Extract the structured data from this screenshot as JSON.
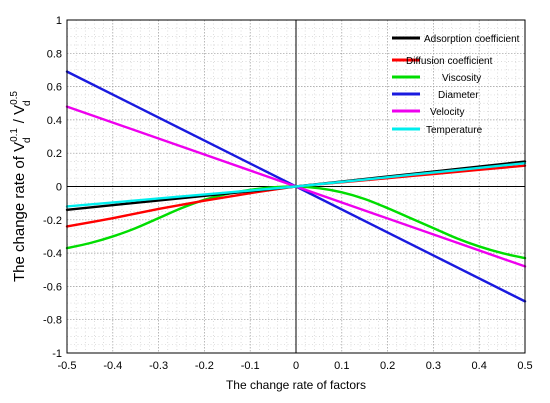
{
  "chart_data": {
    "type": "line",
    "xlabel": "The change rate of factors",
    "ylabel": {
      "prefix": "The change rate of  ",
      "num_base": "V",
      "num_sub": "d",
      "num_sup": "0.1",
      "separator": " / ",
      "den_base": "V",
      "den_sub": "d",
      "den_sup": "0.5"
    },
    "xlim": [
      -0.5,
      0.5
    ],
    "ylim": [
      -1,
      1
    ],
    "x_ticks": [
      "-0.5",
      "-0.4",
      "-0.3",
      "-0.2",
      "-0.1",
      "0",
      "0.1",
      "0.2",
      "0.3",
      "0.4",
      "0.5"
    ],
    "y_ticks": [
      "-1",
      "-0.8",
      "-0.6",
      "-0.4",
      "-0.2",
      "0",
      "0.2",
      "0.4",
      "0.6",
      "0.8",
      "1"
    ],
    "grid": true,
    "legend_position": "top-right",
    "series": [
      {
        "name": "Adsorption coefficient",
        "color": "#000000",
        "x": [
          -0.5,
          -0.25,
          0,
          0.25,
          0.5
        ],
        "y": [
          -0.14,
          -0.07,
          0,
          0.075,
          0.15
        ]
      },
      {
        "name": "Diffusion coefficient",
        "color": "#ff0000",
        "x": [
          -0.5,
          -0.4,
          -0.3,
          -0.2,
          -0.1,
          0,
          0.1,
          0.2,
          0.3,
          0.4,
          0.5
        ],
        "y": [
          -0.24,
          -0.19,
          -0.135,
          -0.085,
          -0.04,
          0,
          0.025,
          0.05,
          0.075,
          0.1,
          0.125
        ]
      },
      {
        "name": "Viscosity",
        "color": "#00dd00",
        "x": [
          -0.5,
          -0.45,
          -0.4,
          -0.35,
          -0.3,
          -0.25,
          -0.2,
          -0.15,
          -0.1,
          -0.05,
          0,
          0.05,
          0.1,
          0.15,
          0.2,
          0.25,
          0.3,
          0.35,
          0.4,
          0.45,
          0.5
        ],
        "y": [
          -0.37,
          -0.34,
          -0.3,
          -0.25,
          -0.19,
          -0.13,
          -0.08,
          -0.045,
          -0.02,
          -0.005,
          0,
          -0.01,
          -0.035,
          -0.075,
          -0.13,
          -0.19,
          -0.25,
          -0.31,
          -0.36,
          -0.4,
          -0.43
        ]
      },
      {
        "name": "Diameter",
        "color": "#1a1adf",
        "x": [
          -0.5,
          0,
          0.5
        ],
        "y": [
          0.69,
          0,
          -0.69
        ]
      },
      {
        "name": "Velocity",
        "color": "#ee00ee",
        "x": [
          -0.5,
          0,
          0.5
        ],
        "y": [
          0.48,
          0,
          -0.48
        ]
      },
      {
        "name": "Temperature",
        "color": "#00eeee",
        "x": [
          -0.5,
          -0.25,
          0,
          0.25,
          0.5
        ],
        "y": [
          -0.12,
          -0.06,
          0,
          0.07,
          0.14
        ]
      }
    ]
  }
}
